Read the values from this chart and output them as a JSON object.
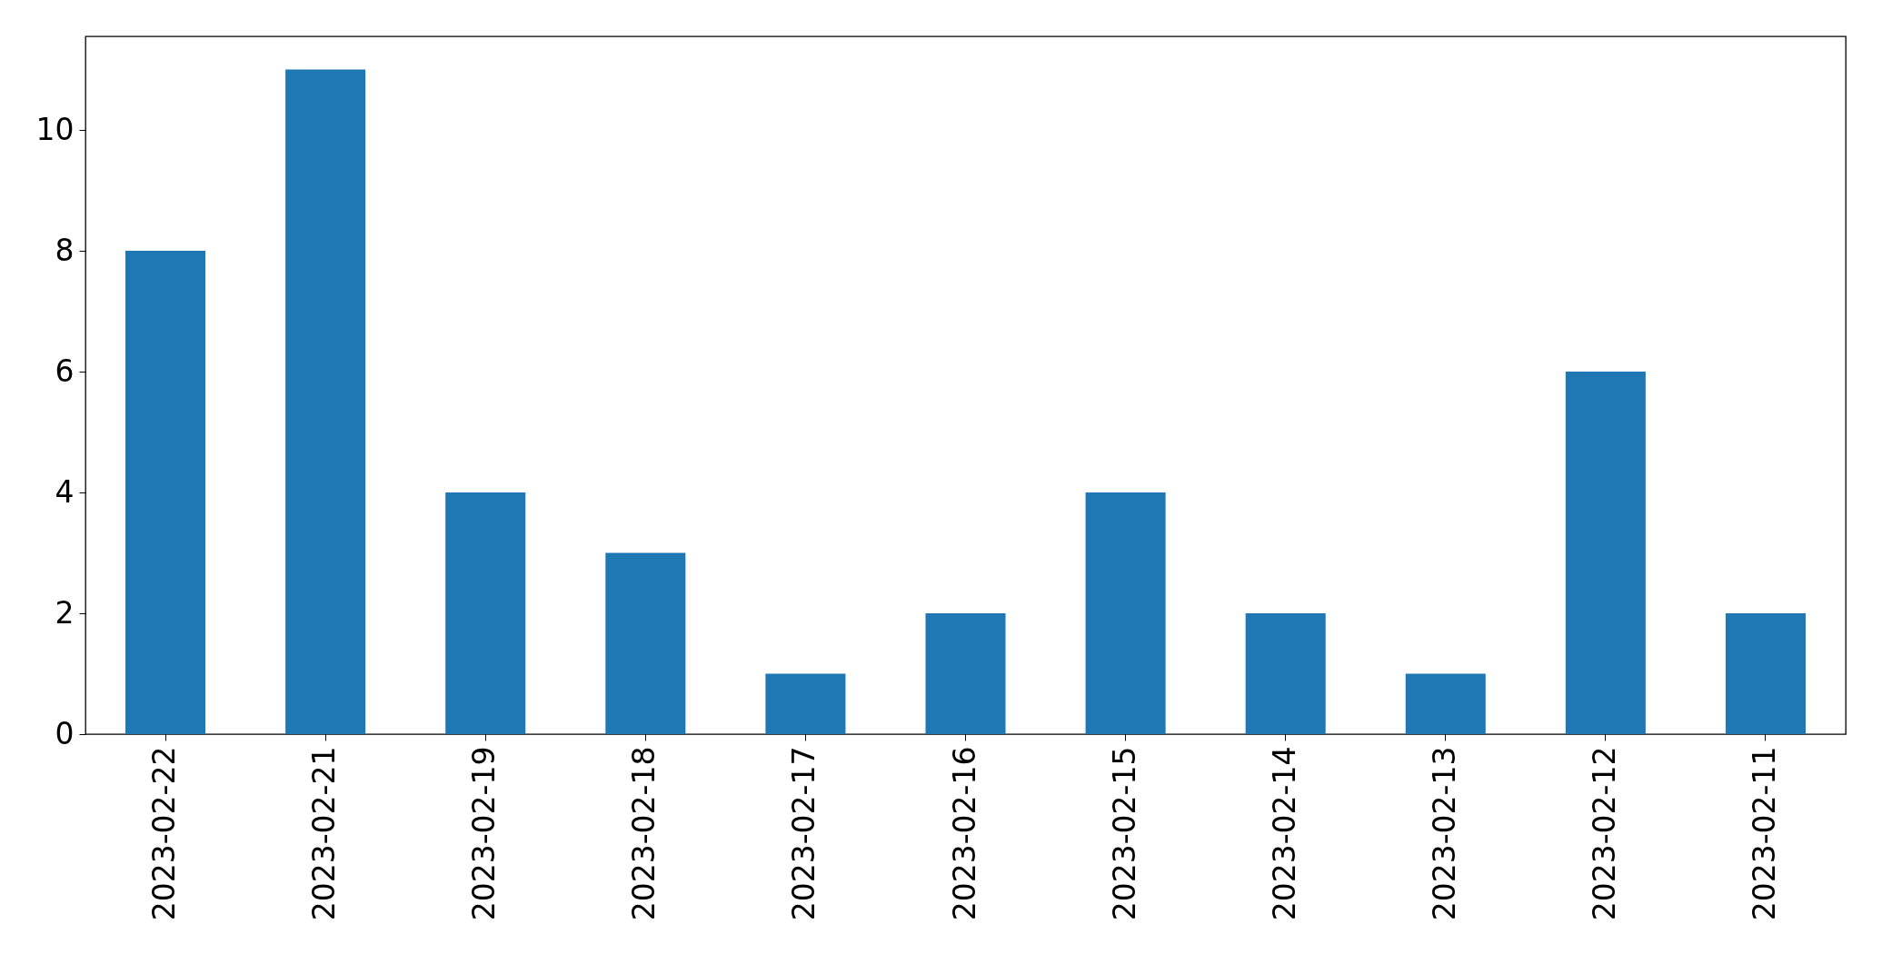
{
  "chart_data": {
    "type": "bar",
    "categories": [
      "2023-02-22",
      "2023-02-21",
      "2023-02-19",
      "2023-02-18",
      "2023-02-17",
      "2023-02-16",
      "2023-02-15",
      "2023-02-14",
      "2023-02-13",
      "2023-02-12",
      "2023-02-11"
    ],
    "values": [
      8,
      11,
      4,
      3,
      1,
      2,
      4,
      2,
      1,
      6,
      2
    ],
    "color": "#1f77b4",
    "ylim": [
      0,
      11.55
    ],
    "yticks": [
      0,
      2,
      4,
      6,
      8,
      10
    ]
  }
}
